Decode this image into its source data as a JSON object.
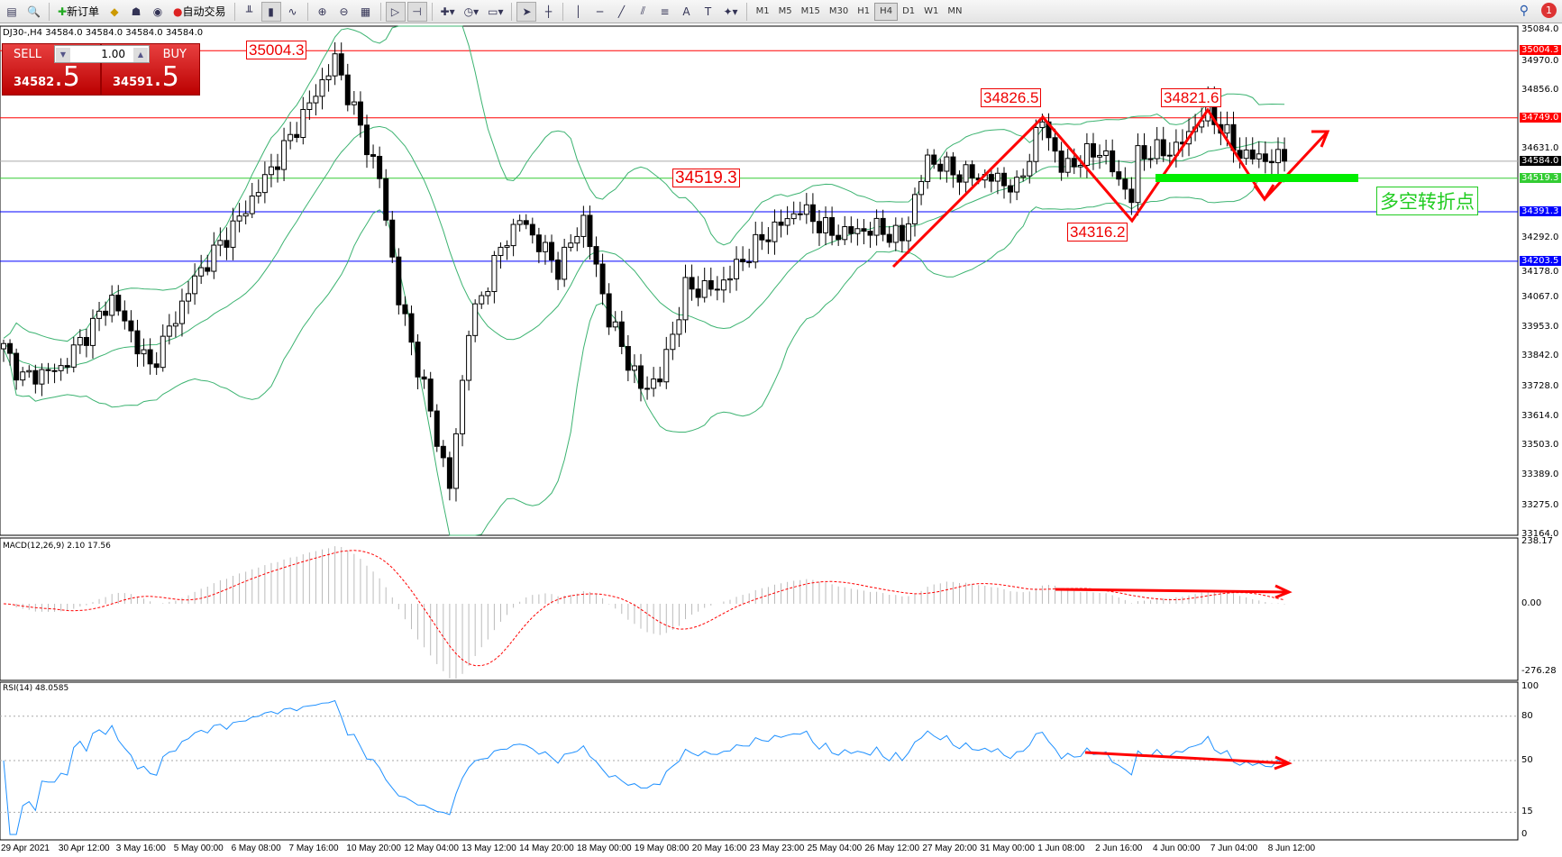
{
  "toolbar": {
    "new_order": "新订单",
    "auto_trading": "自动交易",
    "periods": [
      "M1",
      "M5",
      "M15",
      "M30",
      "H1",
      "H4",
      "D1",
      "W1",
      "MN"
    ],
    "active_period": "H4",
    "notifications": "1"
  },
  "header": {
    "text": "DJ30-,H4  34584.0 34584.0 34584.0 34584.0"
  },
  "trade": {
    "sell_label": "SELL",
    "buy_label": "BUY",
    "lot": "1.00",
    "sell_price_small": "34582",
    "sell_price_big": ".5",
    "buy_price_small": "34591",
    "buy_price_big": ".5"
  },
  "annotations": {
    "a1": "35004.3",
    "a2": "34826.5",
    "a3": "34821.6",
    "a4": "34519.3",
    "a5": "34316.2",
    "pivot": "多空转折点"
  },
  "levels": [
    {
      "price": 35004.3,
      "label": "35004.3",
      "color": "#ff0000"
    },
    {
      "price": 34749.0,
      "label": "34749.0",
      "color": "#ff0000"
    },
    {
      "price": 34584.0,
      "label": "34584.0",
      "color": "#000000"
    },
    {
      "price": 34519.3,
      "label": "34519.3",
      "color": "#33cc33"
    },
    {
      "price": 34391.3,
      "label": "34391.3",
      "color": "#0000ff"
    },
    {
      "price": 34203.5,
      "label": "34203.5",
      "color": "#0000ff"
    }
  ],
  "price_axis": [
    "35084.0",
    "34970.0",
    "34856.0",
    "34631.0",
    "34292.0",
    "34178.0",
    "34067.0",
    "33953.0",
    "33842.0",
    "33728.0",
    "33614.0",
    "33503.0",
    "33389.0",
    "33275.0",
    "33164.0"
  ],
  "macd": {
    "label": "MACD(12,26,9) 2.10 17.56",
    "axis": [
      "238.17",
      "0.00",
      "-276.28"
    ]
  },
  "rsi": {
    "label": "RSI(14) 48.0585",
    "axis": [
      "100",
      "80",
      "50",
      "15",
      "0"
    ]
  },
  "time_axis": [
    "29 Apr 2021",
    "30 Apr 12:00",
    "3 May 16:00",
    "5 May 00:00",
    "6 May 08:00",
    "7 May 16:00",
    "10 May 20:00",
    "12 May 04:00",
    "13 May 12:00",
    "14 May 20:00",
    "18 May 00:00",
    "19 May 08:00",
    "20 May 16:00",
    "23 May 23:00",
    "25 May 04:00",
    "26 May 12:00",
    "27 May 20:00",
    "31 May 00:00",
    "1 Jun 08:00",
    "2 Jun 16:00",
    "4 Jun 00:00",
    "7 Jun 04:00",
    "8 Jun 12:00"
  ],
  "price_anchors": [
    [
      0,
      33872
    ],
    [
      3,
      33759
    ],
    [
      9,
      33796
    ],
    [
      17,
      34061
    ],
    [
      23,
      33796
    ],
    [
      30,
      34137
    ],
    [
      37,
      34365
    ],
    [
      44,
      34630
    ],
    [
      52,
      34970
    ],
    [
      59,
      34516
    ],
    [
      62,
      34061
    ],
    [
      66,
      33720
    ],
    [
      70,
      33342
    ],
    [
      73,
      33948
    ],
    [
      78,
      34251
    ],
    [
      81,
      34365
    ],
    [
      87,
      34175
    ],
    [
      91,
      34365
    ],
    [
      95,
      33986
    ],
    [
      100,
      33720
    ],
    [
      103,
      33759
    ],
    [
      107,
      34100
    ],
    [
      112,
      34100
    ],
    [
      119,
      34289
    ],
    [
      125,
      34402
    ],
    [
      130,
      34308
    ],
    [
      137,
      34327
    ],
    [
      141,
      34289
    ],
    [
      145,
      34592
    ],
    [
      150,
      34535
    ],
    [
      156,
      34516
    ],
    [
      159,
      34478
    ],
    [
      163,
      34743
    ],
    [
      166,
      34554
    ],
    [
      172,
      34630
    ],
    [
      177,
      34440
    ],
    [
      178,
      34610
    ],
    [
      184,
      34630
    ],
    [
      189,
      34781
    ],
    [
      194,
      34610
    ],
    [
      201,
      34584
    ]
  ],
  "colors": {
    "bands": "#3cb371",
    "macd_signal": "#ff0000",
    "rsi": "#1e90ff",
    "annotation": "#ff0000",
    "pivot_zone": "#00ee00"
  }
}
